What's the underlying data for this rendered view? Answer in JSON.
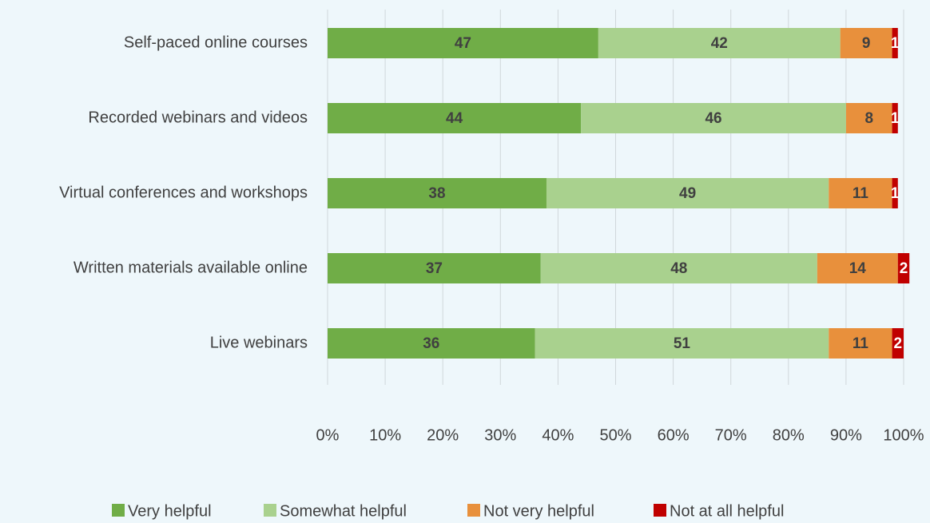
{
  "chart_data": {
    "type": "stacked_barh",
    "categories": [
      "Self-paced online courses",
      "Recorded webinars and videos",
      "Virtual conferences and workshops",
      "Written materials available online",
      "Live webinars"
    ],
    "series": [
      {
        "name": "Very helpful",
        "color": "#70ad47",
        "values": [
          47,
          44,
          38,
          37,
          36
        ]
      },
      {
        "name": "Somewhat helpful",
        "color": "#a9d18e",
        "values": [
          42,
          46,
          49,
          48,
          51
        ]
      },
      {
        "name": "Not very helpful",
        "color": "#e8903c",
        "values": [
          9,
          8,
          11,
          14,
          11
        ]
      },
      {
        "name": "Not at all helpful",
        "color": "#c00000",
        "values": [
          1,
          1,
          1,
          2,
          2
        ]
      }
    ],
    "xlim": [
      0,
      100
    ],
    "xticks": [
      {
        "value": 0,
        "label": "0%"
      },
      {
        "value": 10,
        "label": "10%"
      },
      {
        "value": 20,
        "label": "20%"
      },
      {
        "value": 30,
        "label": "30%"
      },
      {
        "value": 40,
        "label": "40%"
      },
      {
        "value": 50,
        "label": "50%"
      },
      {
        "value": 60,
        "label": "60%"
      },
      {
        "value": 70,
        "label": "70%"
      },
      {
        "value": 80,
        "label": "80%"
      },
      {
        "value": 90,
        "label": "90%"
      },
      {
        "value": 100,
        "label": "100%"
      }
    ],
    "grid": true,
    "legend": "bottom"
  }
}
